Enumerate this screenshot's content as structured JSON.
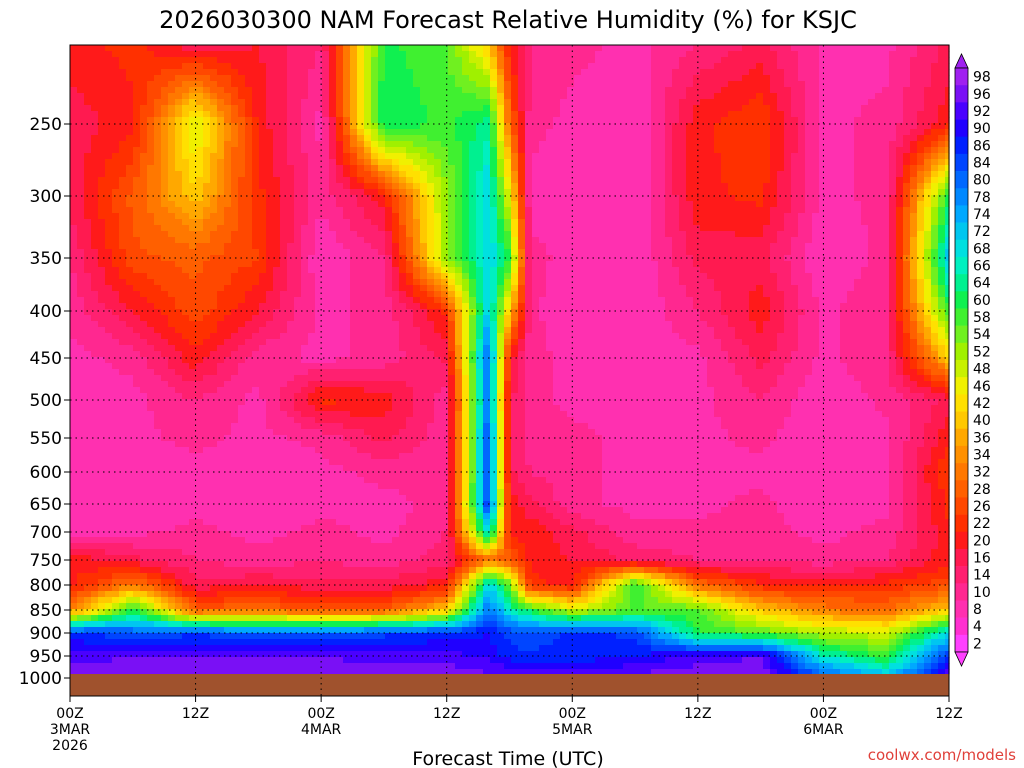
{
  "chart_data": {
    "type": "heatmap",
    "title": "2026030300 NAM Forecast Relative Humidity (%) for KSJC",
    "xlabel": "Forecast Time (UTC)",
    "ylabel": "",
    "x_ticks": [
      {
        "hour": 0,
        "label": "00Z",
        "sub1": "3MAR",
        "sub2": "2026"
      },
      {
        "hour": 12,
        "label": "12Z",
        "sub1": "",
        "sub2": ""
      },
      {
        "hour": 24,
        "label": "00Z",
        "sub1": "4MAR",
        "sub2": ""
      },
      {
        "hour": 36,
        "label": "12Z",
        "sub1": "",
        "sub2": ""
      },
      {
        "hour": 48,
        "label": "00Z",
        "sub1": "5MAR",
        "sub2": ""
      },
      {
        "hour": 60,
        "label": "12Z",
        "sub1": "",
        "sub2": ""
      },
      {
        "hour": 72,
        "label": "00Z",
        "sub1": "6MAR",
        "sub2": ""
      },
      {
        "hour": 84,
        "label": "12Z",
        "sub1": "",
        "sub2": ""
      }
    ],
    "xlim": [
      0,
      84
    ],
    "y_ticks": [
      250,
      300,
      350,
      400,
      450,
      500,
      550,
      600,
      650,
      700,
      750,
      800,
      850,
      900,
      950,
      1000
    ],
    "ylim_hpa": [
      200,
      1000
    ],
    "surface_hpa": 990,
    "grid": true,
    "colorbar": {
      "labels": [
        98,
        96,
        92,
        90,
        86,
        84,
        80,
        78,
        74,
        72,
        68,
        66,
        64,
        60,
        58,
        54,
        52,
        48,
        46,
        42,
        40,
        36,
        34,
        32,
        28,
        26,
        22,
        20,
        16,
        14,
        10,
        8,
        4,
        2
      ],
      "colors": [
        "#a020f0",
        "#7a10f5",
        "#4a00ff",
        "#2000ff",
        "#0020ff",
        "#0045ff",
        "#0068ff",
        "#0088ff",
        "#00a8ff",
        "#00c6f0",
        "#00e0e0",
        "#00f0c0",
        "#00f090",
        "#10f050",
        "#40f030",
        "#70f020",
        "#a0f000",
        "#c8f000",
        "#f0f000",
        "#ffe000",
        "#ffc800",
        "#ffa800",
        "#ff9000",
        "#ff7800",
        "#ff6000",
        "#ff4800",
        "#ff3000",
        "#ff1a1a",
        "#ff1a50",
        "#ff2070",
        "#ff2890",
        "#ff30b0",
        "#ff30d0",
        "#ff40ff"
      ],
      "placement": "right"
    },
    "rh_grid": {
      "hours": [
        0,
        6,
        12,
        18,
        24,
        30,
        36,
        40,
        42,
        44,
        48,
        54,
        60,
        66,
        72,
        78,
        84
      ],
      "levels_hpa": [
        200,
        250,
        300,
        350,
        400,
        450,
        500,
        550,
        600,
        650,
        700,
        750,
        800,
        850,
        900,
        950,
        990
      ],
      "values": [
        [
          20,
          22,
          16,
          18,
          12,
          60,
          56,
          40,
          20,
          12,
          10,
          8,
          12,
          16,
          8,
          8,
          16
        ],
        [
          16,
          20,
          48,
          20,
          8,
          62,
          58,
          64,
          30,
          10,
          8,
          6,
          20,
          24,
          8,
          10,
          20
        ],
        [
          16,
          28,
          40,
          22,
          10,
          20,
          52,
          70,
          46,
          8,
          6,
          6,
          20,
          22,
          8,
          10,
          60
        ],
        [
          12,
          26,
          28,
          24,
          6,
          12,
          52,
          70,
          60,
          10,
          8,
          6,
          16,
          16,
          6,
          10,
          72
        ],
        [
          10,
          18,
          26,
          18,
          8,
          10,
          22,
          72,
          40,
          10,
          6,
          6,
          12,
          20,
          8,
          12,
          58
        ],
        [
          8,
          10,
          20,
          10,
          8,
          10,
          16,
          82,
          20,
          10,
          8,
          8,
          8,
          16,
          8,
          12,
          40
        ],
        [
          6,
          8,
          12,
          8,
          22,
          20,
          10,
          80,
          16,
          10,
          8,
          8,
          8,
          12,
          6,
          10,
          16
        ],
        [
          6,
          8,
          10,
          8,
          10,
          16,
          10,
          84,
          16,
          10,
          10,
          8,
          8,
          10,
          6,
          8,
          20
        ],
        [
          6,
          6,
          8,
          6,
          8,
          10,
          10,
          84,
          16,
          12,
          10,
          8,
          8,
          8,
          6,
          8,
          24
        ],
        [
          6,
          6,
          8,
          6,
          8,
          8,
          10,
          86,
          20,
          16,
          10,
          8,
          8,
          10,
          6,
          8,
          22
        ],
        [
          8,
          8,
          10,
          8,
          10,
          8,
          12,
          70,
          20,
          20,
          16,
          10,
          10,
          10,
          8,
          10,
          20
        ],
        [
          20,
          16,
          12,
          10,
          12,
          10,
          14,
          30,
          28,
          20,
          18,
          14,
          12,
          12,
          10,
          12,
          20
        ],
        [
          20,
          32,
          16,
          18,
          16,
          16,
          20,
          70,
          56,
          22,
          20,
          60,
          30,
          22,
          20,
          22,
          26
        ],
        [
          32,
          60,
          28,
          30,
          26,
          28,
          40,
          80,
          66,
          60,
          48,
          56,
          56,
          40,
          32,
          30,
          40
        ],
        [
          86,
          82,
          84,
          82,
          82,
          84,
          86,
          88,
          84,
          82,
          86,
          84,
          60,
          56,
          50,
          48,
          70
        ],
        [
          92,
          94,
          94,
          94,
          94,
          92,
          92,
          90,
          86,
          86,
          86,
          88,
          92,
          94,
          66,
          58,
          84
        ],
        [
          96,
          96,
          96,
          96,
          96,
          96,
          96,
          94,
          94,
          92,
          92,
          94,
          96,
          96,
          80,
          70,
          92
        ]
      ]
    }
  },
  "credit": "coolwx.com/models"
}
